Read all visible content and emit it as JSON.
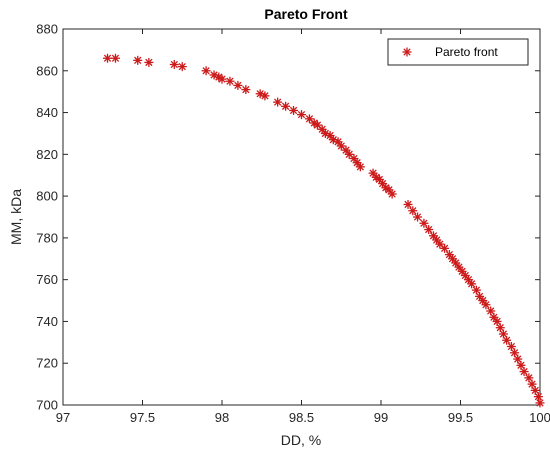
{
  "chart_data": {
    "type": "scatter",
    "title": "Pareto Front",
    "xlabel": "DD, %",
    "ylabel": "MM, kDa",
    "xlim": [
      97,
      100
    ],
    "ylim": [
      700,
      880
    ],
    "xticks": [
      97,
      97.5,
      98,
      98.5,
      99,
      99.5,
      100
    ],
    "xtick_labels": [
      "97",
      "97.5",
      "98",
      "98.5",
      "99",
      "99.5",
      "100"
    ],
    "yticks": [
      700,
      720,
      740,
      760,
      780,
      800,
      820,
      840,
      860,
      880
    ],
    "ytick_labels": [
      "700",
      "720",
      "740",
      "760",
      "780",
      "800",
      "820",
      "840",
      "860",
      "880"
    ],
    "grid": false,
    "legend_position": "top-right",
    "series": [
      {
        "name": "Pareto front",
        "marker": "asterisk",
        "color": "#cc1a1a",
        "x": [
          97.28,
          97.33,
          97.47,
          97.54,
          97.7,
          97.75,
          97.9,
          97.95,
          97.98,
          98.0,
          98.05,
          98.1,
          98.15,
          98.24,
          98.27,
          98.35,
          98.4,
          98.45,
          98.5,
          98.55,
          98.58,
          98.6,
          98.63,
          98.65,
          98.68,
          98.7,
          98.73,
          98.75,
          98.78,
          98.8,
          98.83,
          98.85,
          98.87,
          98.95,
          98.97,
          98.99,
          99.01,
          99.03,
          99.05,
          99.07,
          99.17,
          99.2,
          99.23,
          99.27,
          99.3,
          99.33,
          99.35,
          99.37,
          99.4,
          99.43,
          99.45,
          99.47,
          99.49,
          99.51,
          99.53,
          99.55,
          99.57,
          99.6,
          99.62,
          99.64,
          99.66,
          99.69,
          99.71,
          99.73,
          99.75,
          99.77,
          99.79,
          99.82,
          99.84,
          99.86,
          99.88,
          99.9,
          99.93,
          99.95,
          99.97,
          99.99,
          100.0
        ],
        "y": [
          866,
          866,
          865,
          864,
          863,
          862,
          860,
          858,
          857,
          856,
          855,
          853,
          851,
          849,
          848,
          845,
          843,
          841,
          839,
          837,
          835,
          834,
          832,
          830,
          829,
          827,
          826,
          824,
          822,
          820,
          818,
          816,
          814,
          811,
          809,
          808,
          806,
          804,
          803,
          801,
          796,
          793,
          790,
          787,
          784,
          781,
          779,
          777,
          775,
          772,
          770,
          768,
          766,
          764,
          762,
          760,
          758,
          755,
          752,
          750,
          748,
          745,
          742,
          740,
          737,
          734,
          731,
          728,
          725,
          722,
          719,
          716,
          713,
          710,
          707,
          704,
          701
        ]
      }
    ]
  }
}
